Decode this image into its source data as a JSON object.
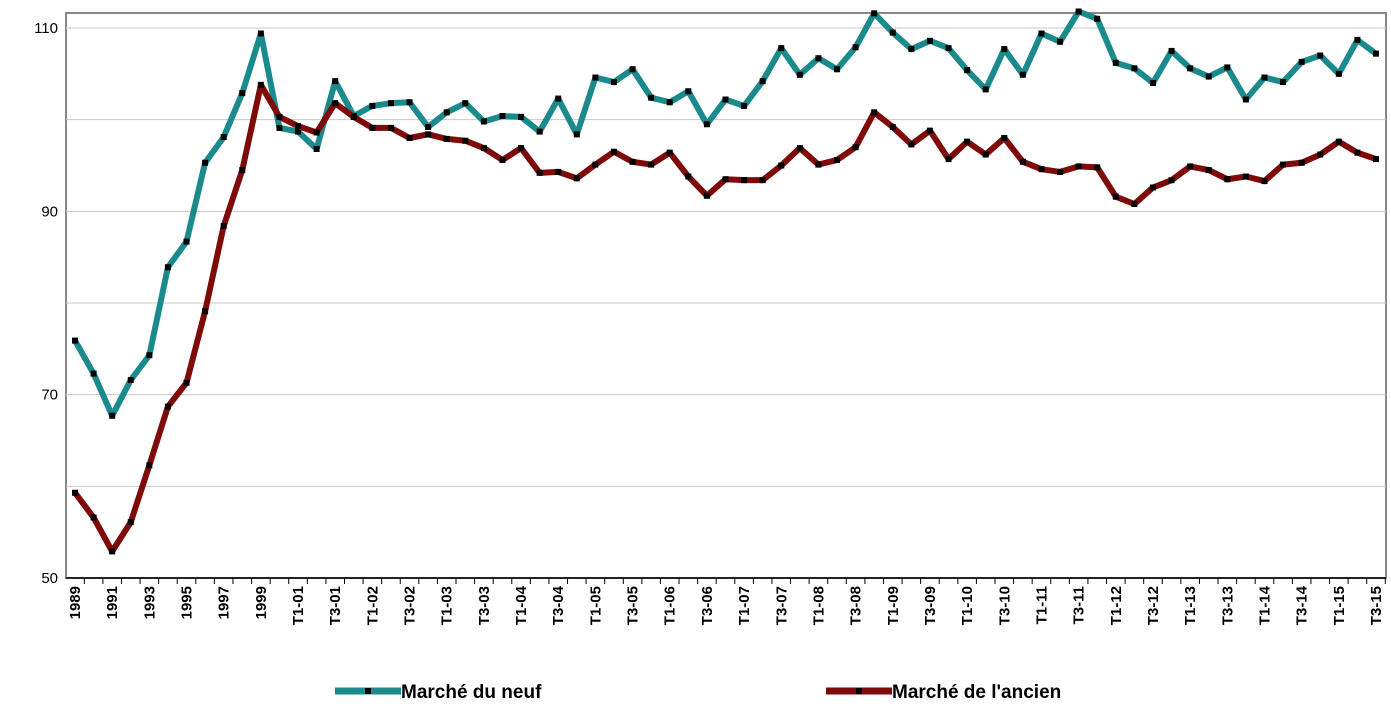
{
  "chart_data": {
    "type": "line",
    "categories": [
      "1989",
      null,
      "1991",
      null,
      "1993",
      null,
      "1995",
      null,
      "1997",
      null,
      "1999",
      null,
      "T1-01",
      null,
      "T3-01",
      null,
      "T1-02",
      null,
      "T3-02",
      null,
      "T1-03",
      null,
      "T3-03",
      null,
      "T1-04",
      null,
      "T3-04",
      null,
      "T1-05",
      null,
      "T3-05",
      null,
      "T1-06",
      null,
      "T3-06",
      null,
      "T1-07",
      null,
      "T3-07",
      null,
      "T1-08",
      null,
      "T3-08",
      null,
      "T1-09",
      null,
      "T3-09",
      null,
      "T1-10",
      null,
      "T3-10",
      null,
      "T1-11",
      null,
      "T3-11",
      null,
      "T1-12",
      null,
      "T3-12",
      null,
      "T1-13",
      null,
      "T3-13",
      null,
      "T1-14",
      null,
      "T3-14",
      null,
      "T1-15",
      null,
      "T3-15"
    ],
    "series": [
      {
        "name": "Marché du neuf",
        "color": "#1b8a8c",
        "values": [
          75.9,
          72.3,
          67.7,
          71.6,
          74.3,
          83.9,
          86.7,
          95.3,
          98.1,
          102.9,
          109.4,
          99.1,
          98.7,
          96.8,
          104.2,
          100.4,
          101.5,
          101.8,
          101.9,
          99.2,
          100.8,
          101.8,
          99.8,
          100.4,
          100.3,
          98.7,
          102.3,
          98.4,
          104.6,
          104.1,
          105.5,
          102.4,
          101.9,
          103.1,
          99.5,
          102.2,
          101.5,
          104.2,
          107.8,
          104.9,
          106.7,
          105.5,
          107.9,
          111.6,
          109.5,
          107.7,
          108.6,
          107.8,
          105.4,
          103.3,
          107.7,
          104.9,
          109.4,
          108.5,
          111.8,
          111.0,
          106.2,
          105.6,
          104.0,
          107.5,
          105.6,
          104.7,
          105.7,
          102.2,
          104.6,
          104.1,
          106.3,
          107.0,
          105.0,
          108.7,
          107.2
        ]
      },
      {
        "name": "Marché de l'ancien",
        "color": "#7f0a0a",
        "values": [
          59.3,
          56.6,
          52.9,
          56.1,
          62.3,
          68.7,
          71.3,
          79.1,
          88.4,
          94.5,
          103.8,
          100.3,
          99.3,
          98.6,
          101.8,
          100.3,
          99.1,
          99.1,
          98.0,
          98.4,
          97.9,
          97.7,
          96.9,
          95.6,
          96.9,
          94.2,
          94.3,
          93.6,
          95.1,
          96.5,
          95.4,
          95.1,
          96.4,
          93.8,
          91.7,
          93.5,
          93.4,
          93.4,
          95.0,
          96.9,
          95.1,
          95.6,
          97.0,
          100.8,
          99.2,
          97.3,
          98.8,
          95.7,
          97.6,
          96.2,
          98.0,
          95.4,
          94.6,
          94.3,
          94.9,
          94.8,
          91.6,
          90.8,
          92.6,
          93.4,
          94.9,
          94.5,
          93.5,
          93.8,
          93.3,
          95.1,
          95.3,
          96.2,
          97.6,
          96.4,
          95.7
        ]
      }
    ],
    "ylim": [
      50,
      110
    ],
    "yticks": [
      50,
      70,
      90,
      110
    ],
    "minor_yticks": [
      60,
      80,
      100
    ],
    "grid": true,
    "markers": true,
    "legend": "bottom"
  }
}
